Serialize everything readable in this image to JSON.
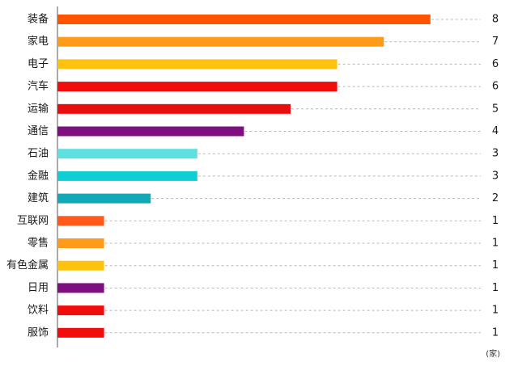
{
  "chart_data": {
    "type": "bar",
    "orientation": "horizontal",
    "title": "",
    "xlabel": "",
    "ylabel": "",
    "unit": "(家)",
    "xlim": [
      0,
      8
    ],
    "grid": false,
    "categories": [
      "装备",
      "家电",
      "电子",
      "汽车",
      "运输",
      "通信",
      "石油",
      "金融",
      "建筑",
      "互联网",
      "零售",
      "有色金属",
      "日用",
      "饮料",
      "服饰"
    ],
    "values": [
      8,
      7,
      6,
      6,
      5,
      4,
      3,
      3,
      2,
      1,
      1,
      1,
      1,
      1,
      1
    ],
    "colors": [
      "#ff5500",
      "#ff9a1a",
      "#ffc20e",
      "#f20d0d",
      "#ea0d0d",
      "#7f0f80",
      "#5ee0e0",
      "#10cfd4",
      "#12a8b8",
      "#ff5a1a",
      "#ff9a1a",
      "#ffc20e",
      "#7f0f80",
      "#f20d0d",
      "#f20d0d"
    ]
  }
}
